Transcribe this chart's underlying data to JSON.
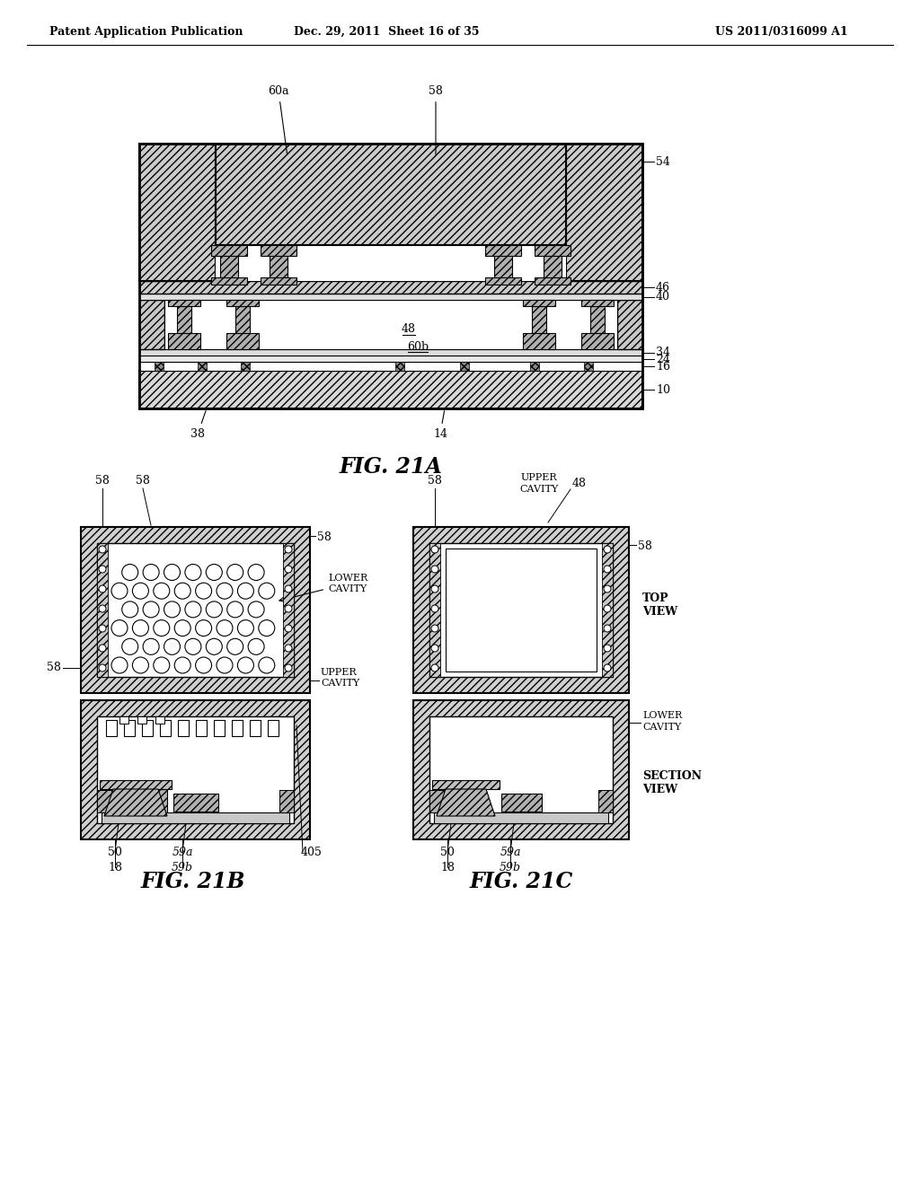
{
  "page_header_left": "Patent Application Publication",
  "page_header_mid": "Dec. 29, 2011  Sheet 16 of 35",
  "page_header_right": "US 2011/0316099 A1",
  "fig21a_caption": "FIG. 21A",
  "fig21b_caption": "FIG. 21B",
  "fig21c_caption": "FIG. 21C",
  "background_color": "#ffffff",
  "line_color": "#000000"
}
